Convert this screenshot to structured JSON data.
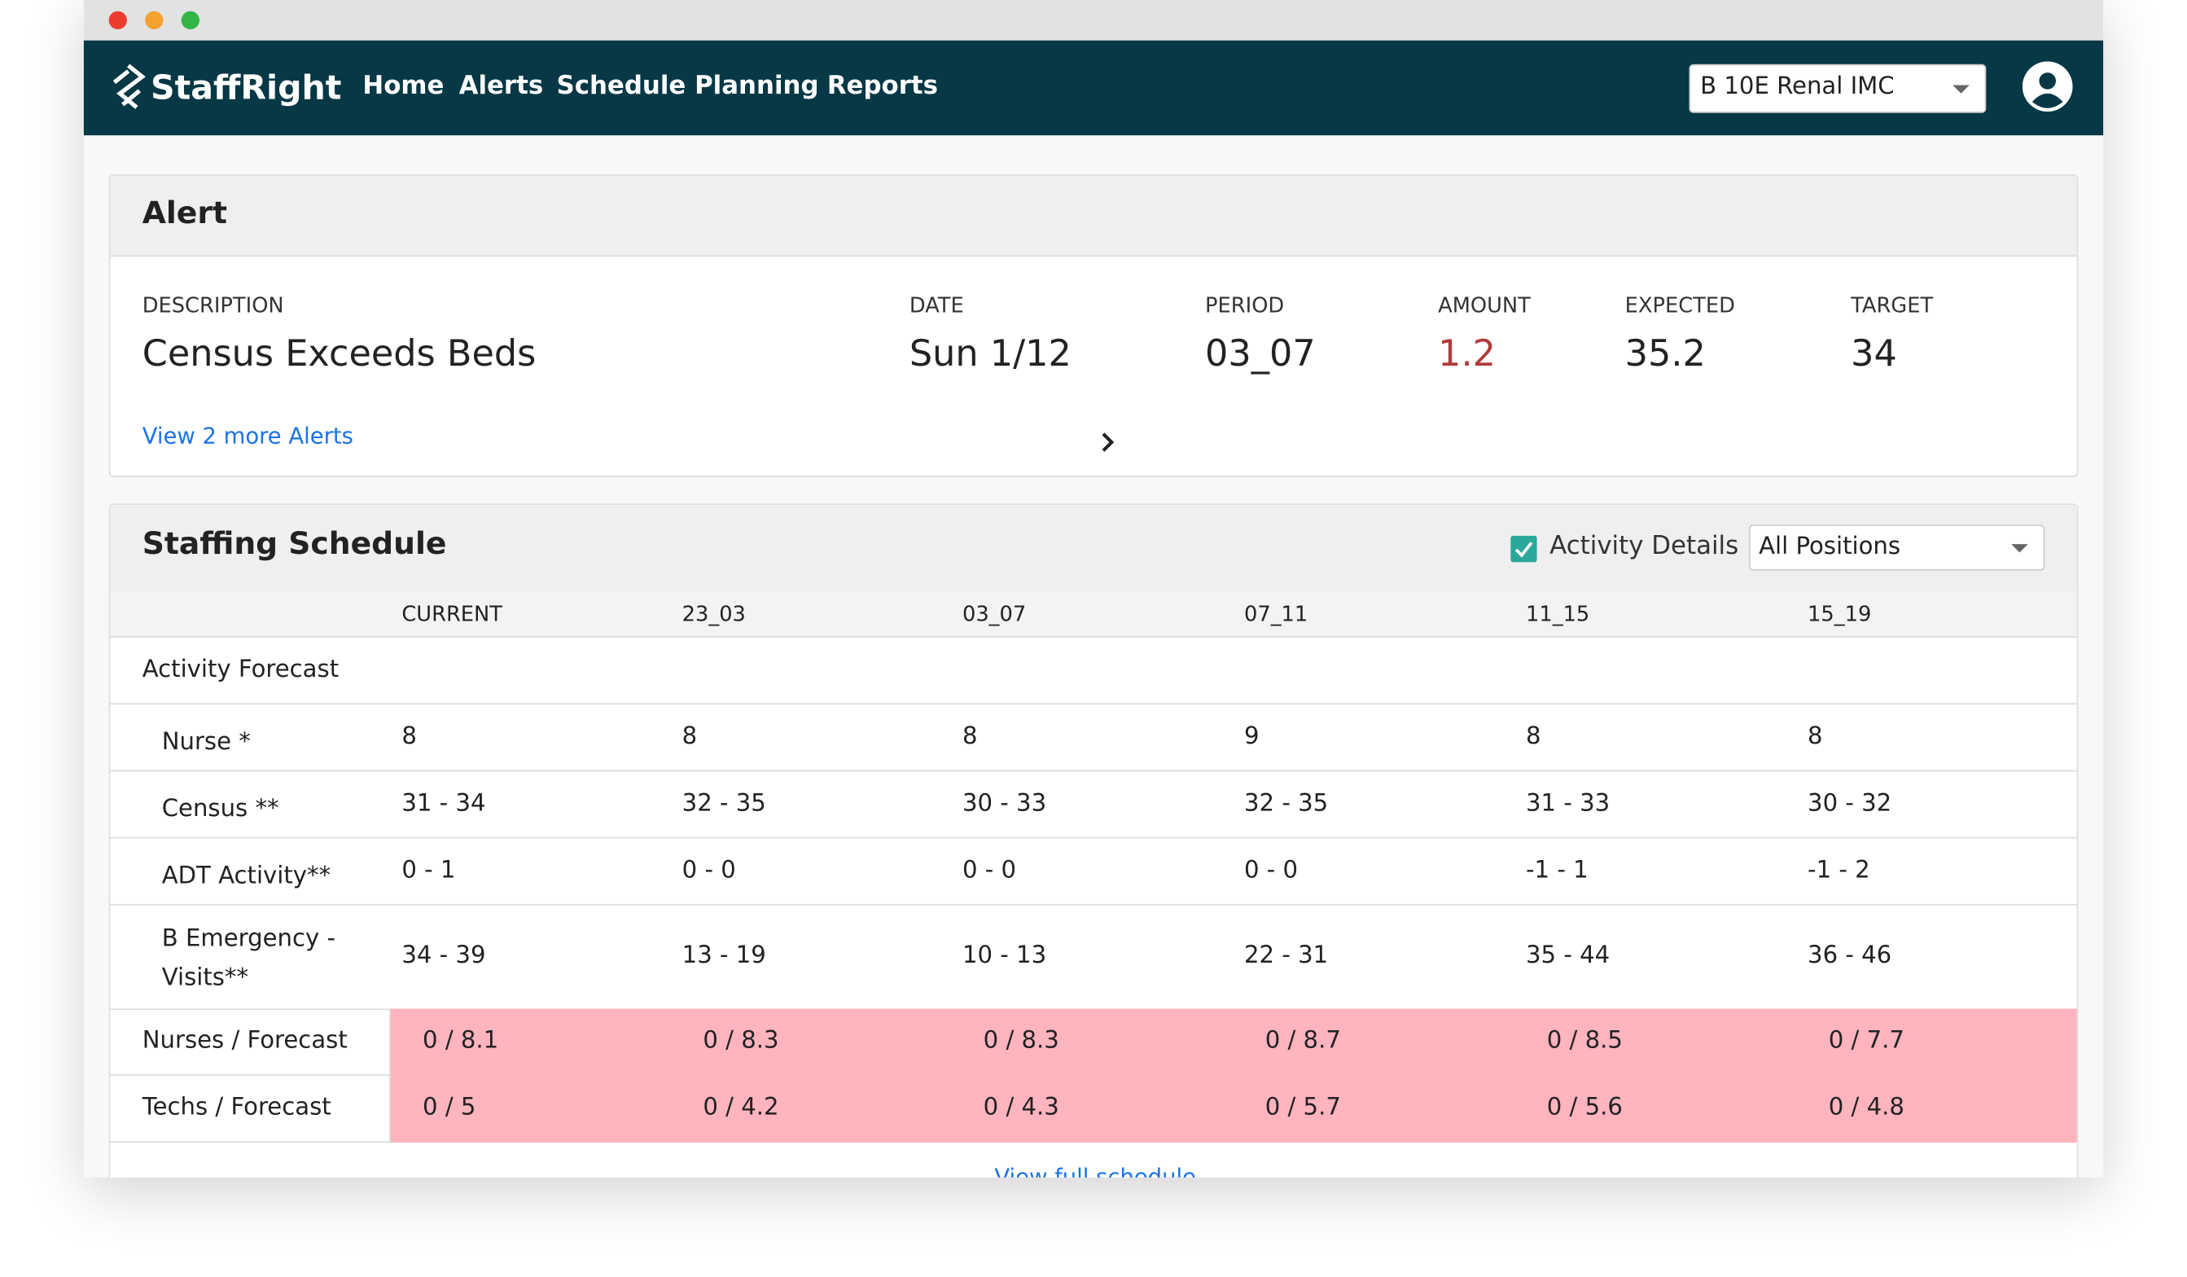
{
  "app": {
    "logo": "StaffRight",
    "nav": [
      "Home",
      "Alerts",
      "Schedule",
      "Planning",
      "Reports"
    ],
    "unit_select": "B 10E Renal IMC"
  },
  "alert": {
    "title": "Alert",
    "fields": [
      {
        "label": "DESCRIPTION",
        "value": "Census Exceeds Beds"
      },
      {
        "label": "DATE",
        "value": "Sun 1/12"
      },
      {
        "label": "PERIOD",
        "value": "03_07"
      },
      {
        "label": "AMOUNT",
        "value": "1.2"
      },
      {
        "label": "EXPECTED",
        "value": "35.2"
      },
      {
        "label": "TARGET",
        "value": "34"
      }
    ],
    "more_link": "View 2 more Alerts"
  },
  "schedule": {
    "title": "Staffing Schedule",
    "checkbox_label": "Activity Details",
    "position_select": "All Positions",
    "columns": [
      "CURRENT",
      "23_03",
      "03_07",
      "07_11",
      "11_15",
      "15_19"
    ],
    "section": "Activity Forecast",
    "rows": [
      {
        "label": "Nurse *",
        "cells": [
          "8",
          "8",
          "8",
          "9",
          "8",
          "8"
        ]
      },
      {
        "label": "Census **",
        "cells": [
          "31 - 34",
          "32 - 35",
          "30 - 33",
          "32 - 35",
          "31 - 33",
          "30 - 32"
        ]
      },
      {
        "label": "ADT Activity**",
        "cells": [
          "0 - 1",
          "0 - 0",
          "0 - 0",
          "0 - 0",
          "-1 - 1",
          "-1 - 2"
        ]
      },
      {
        "label": "B Emergency - Visits**",
        "cells": [
          "34 - 39",
          "13 - 19",
          "10 - 13",
          "22 - 31",
          "35 - 44",
          "36 - 46"
        ]
      }
    ],
    "staff_rows": [
      {
        "label": "Nurses / Forecast",
        "cells": [
          "0 / 8.1",
          "0 / 8.3",
          "0 / 8.3",
          "0 / 8.7",
          "0 / 8.5",
          "0 / 7.7"
        ]
      },
      {
        "label": "Techs / Forecast",
        "cells": [
          "0 / 5",
          "0 / 4.2",
          "0 / 4.3",
          "0 / 5.7",
          "0 / 5.6",
          "0 / 4.8"
        ]
      }
    ],
    "full_link": "View full schedule"
  }
}
